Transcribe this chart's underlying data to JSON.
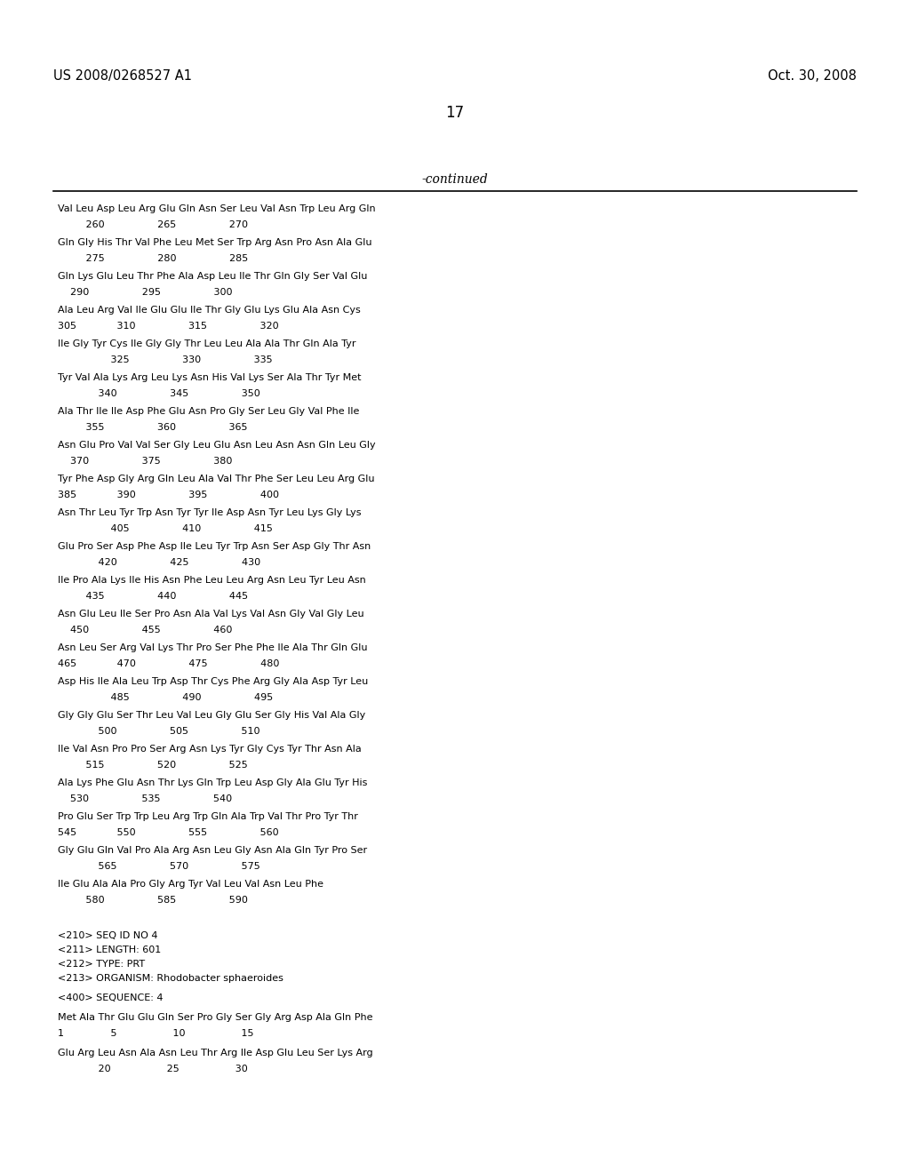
{
  "background_color": "#ffffff",
  "header_left": "US 2008/0268527 A1",
  "header_right": "Oct. 30, 2008",
  "page_number": "17",
  "continued_label": "-continued",
  "header_fontsize": 10.5,
  "page_num_fontsize": 12,
  "continued_fontsize": 10,
  "body_fontsize": 8.0,
  "body_lines": [
    [
      230,
      "Val Leu Asp Leu Arg Glu Gln Asn Ser Leu Val Asn Trp Leu Arg Gln"
    ],
    [
      248,
      "         260                 265                 270"
    ],
    [
      268,
      "Gln Gly His Thr Val Phe Leu Met Ser Trp Arg Asn Pro Asn Ala Glu"
    ],
    [
      286,
      "         275                 280                 285"
    ],
    [
      306,
      "Gln Lys Glu Leu Thr Phe Ala Asp Leu Ile Thr Gln Gly Ser Val Glu"
    ],
    [
      324,
      "    290                 295                 300"
    ],
    [
      344,
      "Ala Leu Arg Val Ile Glu Glu Ile Thr Gly Glu Lys Glu Ala Asn Cys"
    ],
    [
      362,
      "305             310                 315                 320"
    ],
    [
      382,
      "Ile Gly Tyr Cys Ile Gly Gly Thr Leu Leu Ala Ala Thr Gln Ala Tyr"
    ],
    [
      400,
      "                 325                 330                 335"
    ],
    [
      420,
      "Tyr Val Ala Lys Arg Leu Lys Asn His Val Lys Ser Ala Thr Tyr Met"
    ],
    [
      438,
      "             340                 345                 350"
    ],
    [
      458,
      "Ala Thr Ile Ile Asp Phe Glu Asn Pro Gly Ser Leu Gly Val Phe Ile"
    ],
    [
      476,
      "         355                 360                 365"
    ],
    [
      496,
      "Asn Glu Pro Val Val Ser Gly Leu Glu Asn Leu Asn Asn Gln Leu Gly"
    ],
    [
      514,
      "    370                 375                 380"
    ],
    [
      534,
      "Tyr Phe Asp Gly Arg Gln Leu Ala Val Thr Phe Ser Leu Leu Arg Glu"
    ],
    [
      552,
      "385             390                 395                 400"
    ],
    [
      572,
      "Asn Thr Leu Tyr Trp Asn Tyr Tyr Ile Asp Asn Tyr Leu Lys Gly Lys"
    ],
    [
      590,
      "                 405                 410                 415"
    ],
    [
      610,
      "Glu Pro Ser Asp Phe Asp Ile Leu Tyr Trp Asn Ser Asp Gly Thr Asn"
    ],
    [
      628,
      "             420                 425                 430"
    ],
    [
      648,
      "Ile Pro Ala Lys Ile His Asn Phe Leu Leu Arg Asn Leu Tyr Leu Asn"
    ],
    [
      666,
      "         435                 440                 445"
    ],
    [
      686,
      "Asn Glu Leu Ile Ser Pro Asn Ala Val Lys Val Asn Gly Val Gly Leu"
    ],
    [
      704,
      "    450                 455                 460"
    ],
    [
      724,
      "Asn Leu Ser Arg Val Lys Thr Pro Ser Phe Phe Ile Ala Thr Gln Glu"
    ],
    [
      742,
      "465             470                 475                 480"
    ],
    [
      762,
      "Asp His Ile Ala Leu Trp Asp Thr Cys Phe Arg Gly Ala Asp Tyr Leu"
    ],
    [
      780,
      "                 485                 490                 495"
    ],
    [
      800,
      "Gly Gly Glu Ser Thr Leu Val Leu Gly Glu Ser Gly His Val Ala Gly"
    ],
    [
      818,
      "             500                 505                 510"
    ],
    [
      838,
      "Ile Val Asn Pro Pro Ser Arg Asn Lys Tyr Gly Cys Tyr Thr Asn Ala"
    ],
    [
      856,
      "         515                 520                 525"
    ],
    [
      876,
      "Ala Lys Phe Glu Asn Thr Lys Gln Trp Leu Asp Gly Ala Glu Tyr His"
    ],
    [
      894,
      "    530                 535                 540"
    ],
    [
      914,
      "Pro Glu Ser Trp Trp Leu Arg Trp Gln Ala Trp Val Thr Pro Tyr Thr"
    ],
    [
      932,
      "545             550                 555                 560"
    ],
    [
      952,
      "Gly Glu Gln Val Pro Ala Arg Asn Leu Gly Asn Ala Gln Tyr Pro Ser"
    ],
    [
      970,
      "             565                 570                 575"
    ],
    [
      990,
      "Ile Glu Ala Ala Pro Gly Arg Tyr Val Leu Val Asn Leu Phe"
    ],
    [
      1008,
      "         580                 585                 590"
    ]
  ],
  "seq_lines": [
    [
      1048,
      "<210> SEQ ID NO 4"
    ],
    [
      1064,
      "<211> LENGTH: 601"
    ],
    [
      1080,
      "<212> TYPE: PRT"
    ],
    [
      1096,
      "<213> ORGANISM: Rhodobacter sphaeroides"
    ],
    [
      1118,
      "<400> SEQUENCE: 4"
    ],
    [
      1140,
      "Met Ala Thr Glu Glu Gln Ser Pro Gly Ser Gly Arg Asp Ala Gln Phe"
    ],
    [
      1158,
      "1               5                  10                  15"
    ],
    [
      1180,
      "Glu Arg Leu Asn Ala Asn Leu Thr Arg Ile Asp Glu Leu Ser Lys Arg"
    ],
    [
      1198,
      "             20                  25                  30"
    ]
  ]
}
